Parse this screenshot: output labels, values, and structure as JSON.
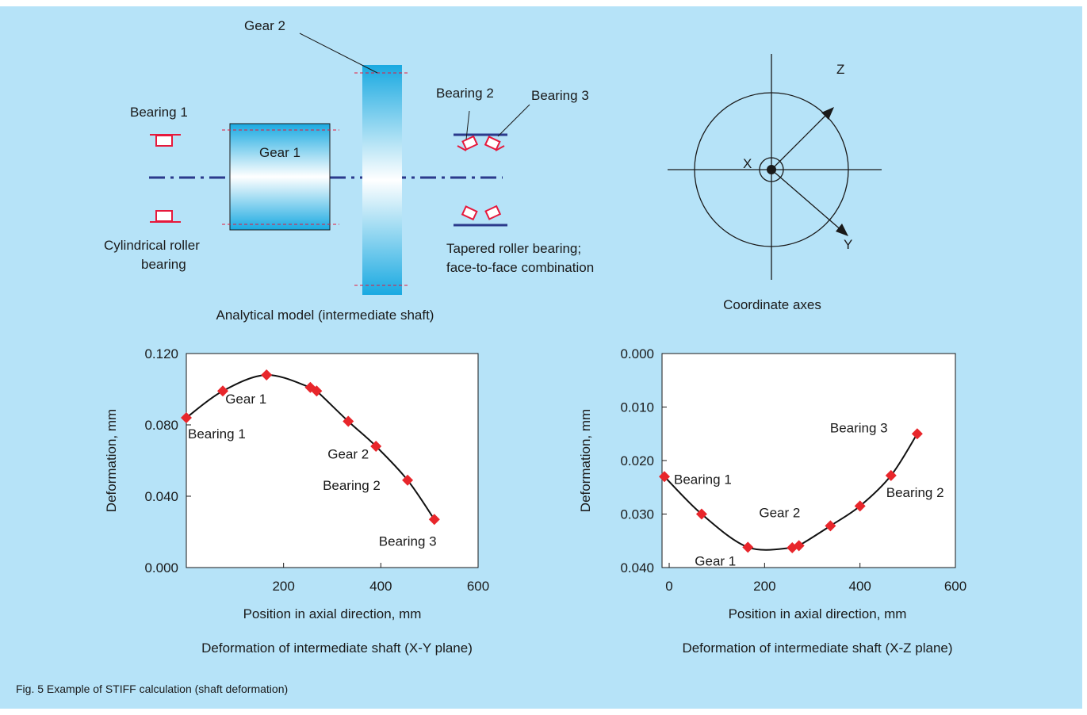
{
  "colors": {
    "background": "#b6e3f8",
    "gear_blue": "#19a9e1",
    "bearing_red": "#e6193c",
    "shaft_axis": "#2b3a8c",
    "marker": "#e8262b",
    "curve": "#111111"
  },
  "model": {
    "title": "Analytical model (intermediate shaft)",
    "gear1_label": "Gear 1",
    "gear2_label": "Gear 2",
    "bearing1_label": "Bearing 1",
    "bearing2_label": "Bearing 2",
    "bearing3_label": "Bearing 3",
    "cyl_bearing_line1": "Cylindrical roller",
    "cyl_bearing_line2": "bearing",
    "tapered_line1": "Tapered roller bearing;",
    "tapered_line2": "face-to-face combination"
  },
  "axes_diagram": {
    "title": "Coordinate axes",
    "x_label": "X",
    "y_label": "Y",
    "z_label": "Z"
  },
  "chart_data": [
    {
      "type": "line",
      "title": "Deformation of intermediate shaft (X-Y plane)",
      "xlabel": "Position in axial direction, mm",
      "ylabel": "Deformation, mm",
      "xlim": [
        0,
        600
      ],
      "ylim": [
        0,
        0.12
      ],
      "y_inverted": false,
      "x_ticks": [
        "200",
        "400",
        "600"
      ],
      "y_ticks": [
        "0.000",
        "0.040",
        "0.080",
        "0.120"
      ],
      "series": [
        {
          "x": [
            0,
            75,
            165,
            255,
            268,
            333,
            390,
            455,
            510
          ],
          "y": [
            0.084,
            0.099,
            0.108,
            0.101,
            0.099,
            0.082,
            0.068,
            0.049,
            0.027
          ]
        }
      ],
      "annotations": [
        {
          "text": "Gear 1",
          "x": 165,
          "y": 0.108
        },
        {
          "text": "Gear 2",
          "x": 333,
          "y": 0.082
        },
        {
          "text": "Bearing 1",
          "x": 0,
          "y": 0.084
        },
        {
          "text": "Bearing 2",
          "x": 455,
          "y": 0.049
        },
        {
          "text": "Bearing 3",
          "x": 510,
          "y": 0.027
        }
      ]
    },
    {
      "type": "line",
      "title": "Deformation of intermediate shaft (X-Z plane)",
      "xlabel": "Position in axial direction, mm",
      "ylabel": "Deformation, mm",
      "xlim": [
        -15,
        600
      ],
      "ylim": [
        0,
        0.04
      ],
      "y_inverted": true,
      "x_ticks": [
        "0",
        "200",
        "400",
        "600"
      ],
      "y_ticks": [
        "0.000",
        "0.010",
        "0.020",
        "0.030",
        "0.040"
      ],
      "series": [
        {
          "x": [
            -10,
            68,
            165,
            258,
            272,
            338,
            400,
            465,
            520
          ],
          "y": [
            0.023,
            0.03,
            0.0362,
            0.0363,
            0.0359,
            0.0322,
            0.0285,
            0.0228,
            0.015
          ]
        }
      ],
      "annotations": [
        {
          "text": "Bearing 1",
          "x": -10,
          "y": 0.023
        },
        {
          "text": "Gear 1",
          "x": 165,
          "y": 0.0362
        },
        {
          "text": "Gear 2",
          "x": 338,
          "y": 0.0322
        },
        {
          "text": "Bearing 2",
          "x": 465,
          "y": 0.0228
        },
        {
          "text": "Bearing 3",
          "x": 520,
          "y": 0.015
        }
      ]
    }
  ],
  "caption": "Fig. 5 Example of STIFF calculation (shaft deformation)"
}
